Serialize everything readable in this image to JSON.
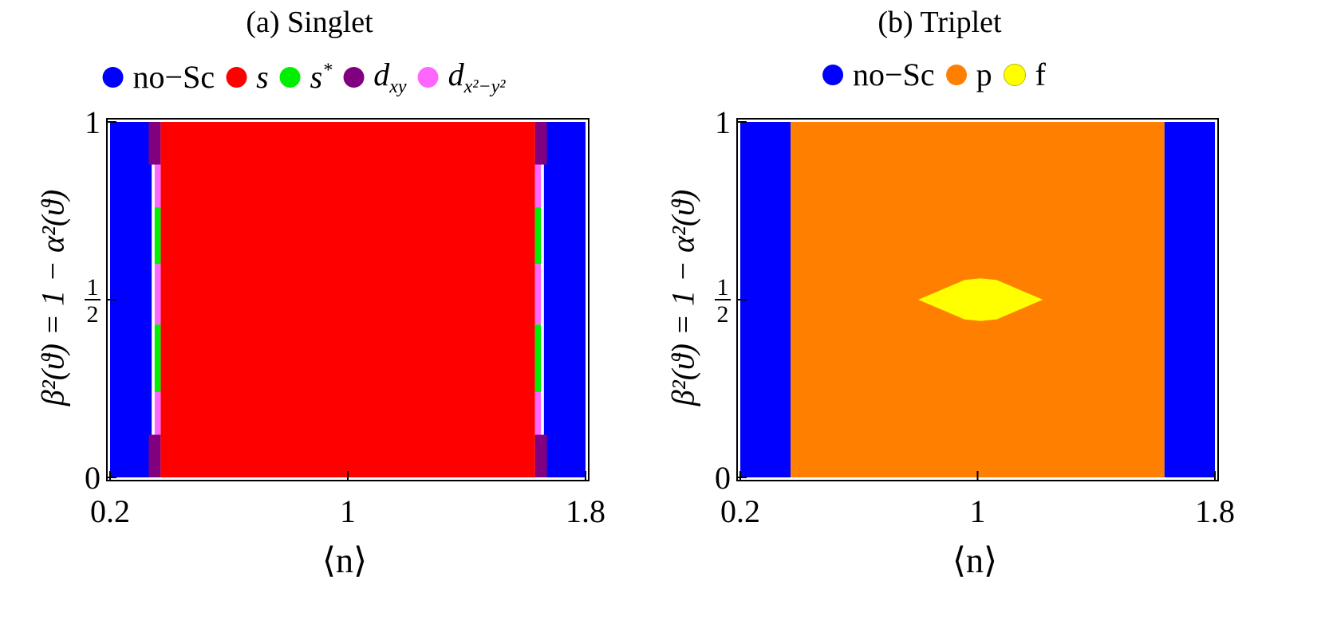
{
  "chart_data": [
    {
      "type": "heatmap",
      "title": "(a) Singlet",
      "xlabel": "⟨n⟩",
      "ylabel": "β²(ϑ) = 1 − α²(ϑ)",
      "xlim": [
        0.2,
        1.8
      ],
      "ylim": [
        0,
        1
      ],
      "xticks": [
        0.2,
        1,
        1.8
      ],
      "xtick_labels": [
        "0.2",
        "1",
        "1.8"
      ],
      "yticks": [
        0,
        0.5,
        1
      ],
      "ytick_labels": [
        "0",
        "½",
        "1"
      ],
      "legend": [
        {
          "label": "no−Sc",
          "color": "#0000ff"
        },
        {
          "label": "s",
          "color": "#ff0000"
        },
        {
          "label": "s*",
          "color": "#00ee00"
        },
        {
          "label": "dxy",
          "color": "#800080"
        },
        {
          "label": "dx²−y²",
          "color": "#ff66ff"
        }
      ],
      "regions": [
        {
          "phase": "no−Sc",
          "x": [
            0.2,
            0.34
          ],
          "y": [
            0,
            1
          ]
        },
        {
          "phase": "s",
          "x": [
            0.37,
            1.63
          ],
          "y": [
            0,
            1
          ]
        },
        {
          "phase": "dxy",
          "x": [
            0.33,
            0.37
          ],
          "y": [
            0.88,
            1
          ]
        },
        {
          "phase": "dx²−y²",
          "x": [
            0.35,
            0.37
          ],
          "y": [
            0.76,
            0.88
          ]
        },
        {
          "phase": "s*",
          "x": [
            0.35,
            0.37
          ],
          "y": [
            0.6,
            0.76
          ]
        },
        {
          "phase": "dx²−y²",
          "x": [
            0.35,
            0.37
          ],
          "y": [
            0.43,
            0.6
          ]
        },
        {
          "phase": "s*",
          "x": [
            0.35,
            0.37
          ],
          "y": [
            0.24,
            0.43
          ]
        },
        {
          "phase": "dx²−y²",
          "x": [
            0.35,
            0.37
          ],
          "y": [
            0.12,
            0.24
          ]
        },
        {
          "phase": "dxy",
          "x": [
            0.33,
            0.37
          ],
          "y": [
            0,
            0.12
          ]
        },
        {
          "phase": "no−Sc",
          "x": [
            1.66,
            1.8
          ],
          "y": [
            0,
            1
          ]
        },
        {
          "phase": "dxy",
          "x": [
            1.63,
            1.67
          ],
          "y": [
            0.88,
            1
          ]
        },
        {
          "phase": "dx²−y²",
          "x": [
            1.63,
            1.65
          ],
          "y": [
            0.76,
            0.88
          ]
        },
        {
          "phase": "s*",
          "x": [
            1.63,
            1.65
          ],
          "y": [
            0.6,
            0.76
          ]
        },
        {
          "phase": "dx²−y²",
          "x": [
            1.63,
            1.65
          ],
          "y": [
            0.43,
            0.6
          ]
        },
        {
          "phase": "s*",
          "x": [
            1.63,
            1.65
          ],
          "y": [
            0.24,
            0.43
          ]
        },
        {
          "phase": "dx²−y²",
          "x": [
            1.63,
            1.65
          ],
          "y": [
            0.12,
            0.24
          ]
        },
        {
          "phase": "dxy",
          "x": [
            1.63,
            1.67
          ],
          "y": [
            0,
            0.12
          ]
        }
      ]
    },
    {
      "type": "heatmap",
      "title": "(b) Triplet",
      "xlabel": "⟨n⟩",
      "ylabel": "β²(ϑ) = 1 − α²(ϑ)",
      "xlim": [
        0.2,
        1.8
      ],
      "ylim": [
        0,
        1
      ],
      "xticks": [
        0.2,
        1,
        1.8
      ],
      "xtick_labels": [
        "0.2",
        "1",
        "1.8"
      ],
      "yticks": [
        0,
        0.5,
        1
      ],
      "ytick_labels": [
        "0",
        "½",
        "1"
      ],
      "legend": [
        {
          "label": "no−Sc",
          "color": "#0000ff"
        },
        {
          "label": "p",
          "color": "#ff8000"
        },
        {
          "label": "f",
          "color": "#ffff00"
        }
      ],
      "regions": [
        {
          "phase": "no−Sc",
          "x": [
            0.2,
            0.37
          ],
          "y": [
            0,
            1
          ]
        },
        {
          "phase": "p",
          "x": [
            0.37,
            1.63
          ],
          "y": [
            0,
            1
          ]
        },
        {
          "phase": "no−Sc",
          "x": [
            1.63,
            1.8
          ],
          "y": [
            0,
            1
          ]
        },
        {
          "phase": "f",
          "shape": "diamond",
          "x": [
            0.8,
            1.22
          ],
          "y": [
            0.44,
            0.56
          ]
        }
      ]
    }
  ]
}
